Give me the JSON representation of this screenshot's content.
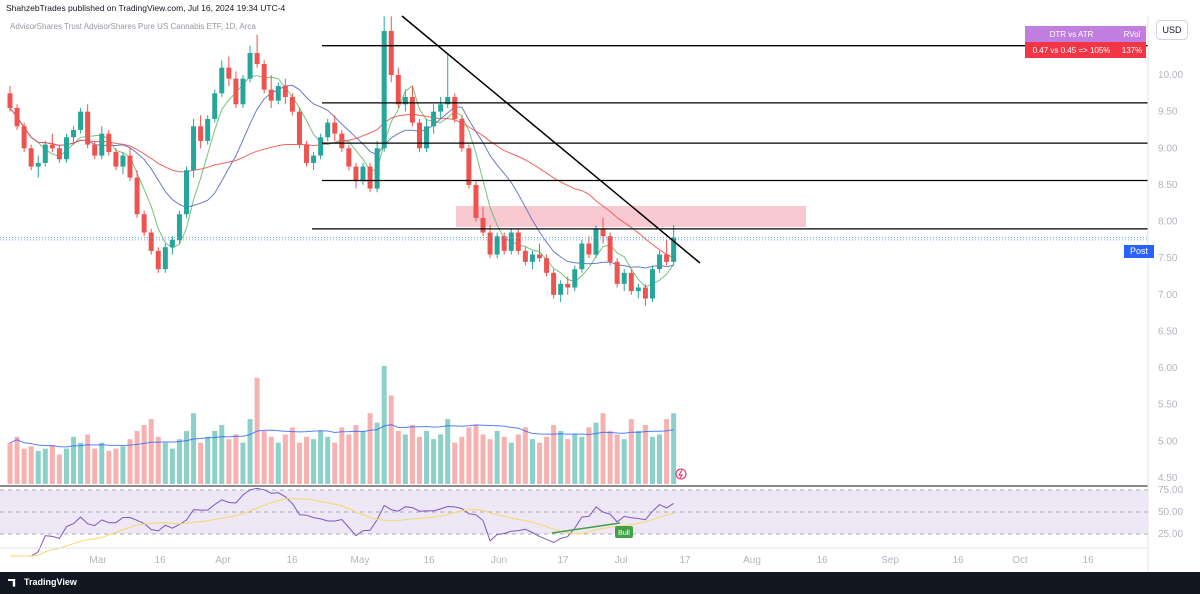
{
  "header": {
    "publisher_line": "ShahzebTrades published on TradingView.com, Jul 16, 2024 19:34 UTC-4",
    "symbol_line": "AdvisorShares Trust AdvisorShares Pure US Cannabis ETF, 1D, Arca"
  },
  "currency_button": "USD",
  "dtr_table": {
    "header_left": "DTR vs ATR",
    "header_right": "RVol",
    "value_left": "0.47 vs 0.45 => 105%",
    "value_right": "137%"
  },
  "post_label": "Post",
  "footer": {
    "logo_text": "TradingView"
  },
  "colors": {
    "bull": "#26a69a",
    "bear": "#ef5350",
    "ma_fast": "#66bb6a",
    "ma_mid": "#5c6bc0",
    "ma_slow": "#ef5350",
    "zone": "#f8bbc6",
    "rsi_line": "#7e57c2",
    "rsi_ma": "#f7d96a",
    "rsi_band": "#ede7f6",
    "table_purple": "#c07ee0",
    "table_red": "#f23645"
  },
  "chart_data": {
    "type": "candlestick",
    "price_axis": {
      "ticks": [
        "10.00",
        "9.50",
        "9.00",
        "8.50",
        "8.00",
        "7.50",
        "7.00",
        "6.50",
        "6.00",
        "5.50",
        "5.00",
        "4.50"
      ],
      "ylim": [
        4.5,
        10.5
      ]
    },
    "levels": [
      {
        "label": "10.40",
        "value": 10.4
      },
      {
        "label": "9.62",
        "value": 9.62
      },
      {
        "label": "9.07",
        "value": 9.07
      },
      {
        "label": "8.56",
        "value": 8.56
      },
      {
        "label": "7.90",
        "value": 7.9
      }
    ],
    "last_price": {
      "label": "7.78",
      "value": 7.78
    },
    "post_price": {
      "label": "7.75",
      "value": 7.75
    },
    "time_axis": [
      "Mar",
      "16",
      "Apr",
      "16",
      "May",
      "16",
      "Jun",
      "17",
      "Jul",
      "17",
      "Aug",
      "16",
      "Sep",
      "16",
      "Oct",
      "16"
    ],
    "rsi_axis": [
      "75.00",
      "50.00",
      "25.00"
    ],
    "rsi_badge": "Bull",
    "candles_ohlc": [
      [
        9.75,
        9.85,
        9.5,
        9.55
      ],
      [
        9.55,
        9.6,
        9.25,
        9.3
      ],
      [
        9.3,
        9.35,
        8.95,
        9.0
      ],
      [
        9.0,
        9.05,
        8.7,
        8.75
      ],
      [
        8.75,
        8.9,
        8.6,
        8.8
      ],
      [
        8.8,
        9.1,
        8.75,
        9.05
      ],
      [
        9.05,
        9.2,
        8.95,
        9.0
      ],
      [
        9.0,
        9.05,
        8.8,
        8.85
      ],
      [
        8.85,
        9.2,
        8.8,
        9.15
      ],
      [
        9.15,
        9.3,
        9.05,
        9.25
      ],
      [
        9.25,
        9.55,
        9.2,
        9.5
      ],
      [
        9.5,
        9.6,
        9.0,
        9.05
      ],
      [
        9.05,
        9.1,
        8.85,
        8.9
      ],
      [
        8.9,
        9.3,
        8.85,
        9.2
      ],
      [
        9.2,
        9.25,
        8.9,
        8.95
      ],
      [
        8.95,
        9.0,
        8.7,
        8.75
      ],
      [
        8.75,
        8.95,
        8.65,
        8.9
      ],
      [
        8.9,
        9.0,
        8.55,
        8.6
      ],
      [
        8.6,
        8.7,
        8.05,
        8.1
      ],
      [
        8.1,
        8.15,
        7.8,
        7.85
      ],
      [
        7.85,
        7.9,
        7.55,
        7.6
      ],
      [
        7.6,
        7.65,
        7.3,
        7.35
      ],
      [
        7.35,
        7.7,
        7.3,
        7.65
      ],
      [
        7.65,
        7.8,
        7.55,
        7.75
      ],
      [
        7.75,
        8.15,
        7.7,
        8.1
      ],
      [
        8.1,
        8.75,
        8.05,
        8.7
      ],
      [
        8.7,
        9.4,
        8.6,
        9.3
      ],
      [
        9.3,
        9.45,
        9.0,
        9.1
      ],
      [
        9.1,
        9.45,
        9.05,
        9.4
      ],
      [
        9.4,
        9.8,
        9.35,
        9.75
      ],
      [
        9.75,
        10.2,
        9.7,
        10.1
      ],
      [
        10.1,
        10.25,
        9.85,
        9.95
      ],
      [
        9.95,
        10.05,
        9.55,
        9.6
      ],
      [
        9.6,
        10.0,
        9.55,
        9.95
      ],
      [
        9.95,
        10.4,
        9.9,
        10.3
      ],
      [
        10.3,
        10.55,
        10.1,
        10.15
      ],
      [
        10.15,
        10.2,
        9.75,
        9.8
      ],
      [
        9.8,
        10.0,
        9.55,
        9.65
      ],
      [
        9.65,
        9.9,
        9.6,
        9.85
      ],
      [
        9.85,
        9.95,
        9.6,
        9.7
      ],
      [
        9.7,
        9.75,
        9.45,
        9.5
      ],
      [
        9.5,
        9.55,
        9.0,
        9.05
      ],
      [
        9.05,
        9.1,
        8.75,
        8.8
      ],
      [
        8.8,
        8.95,
        8.7,
        8.9
      ],
      [
        8.9,
        9.2,
        8.85,
        9.15
      ],
      [
        9.15,
        9.4,
        9.1,
        9.35
      ],
      [
        9.35,
        9.45,
        9.1,
        9.2
      ],
      [
        9.2,
        9.25,
        8.95,
        9.0
      ],
      [
        9.0,
        9.05,
        8.7,
        8.75
      ],
      [
        8.75,
        8.8,
        8.45,
        8.55
      ],
      [
        8.55,
        8.8,
        8.5,
        8.75
      ],
      [
        8.75,
        8.8,
        8.4,
        8.45
      ],
      [
        8.45,
        9.1,
        8.4,
        9.0
      ],
      [
        9.0,
        10.8,
        8.95,
        10.6
      ],
      [
        10.6,
        10.8,
        9.9,
        10.0
      ],
      [
        10.0,
        10.1,
        9.55,
        9.6
      ],
      [
        9.6,
        9.8,
        9.5,
        9.7
      ],
      [
        9.7,
        9.85,
        9.3,
        9.35
      ],
      [
        9.35,
        9.4,
        8.95,
        9.0
      ],
      [
        9.0,
        9.4,
        8.95,
        9.3
      ],
      [
        9.3,
        9.6,
        9.2,
        9.5
      ],
      [
        9.5,
        9.7,
        9.4,
        9.6
      ],
      [
        9.6,
        10.3,
        9.55,
        9.7
      ],
      [
        9.7,
        9.75,
        9.35,
        9.4
      ],
      [
        9.4,
        9.45,
        8.95,
        9.0
      ],
      [
        9.0,
        9.05,
        8.45,
        8.5
      ],
      [
        8.5,
        8.55,
        8.0,
        8.05
      ],
      [
        8.05,
        8.2,
        7.8,
        7.85
      ],
      [
        7.85,
        7.95,
        7.5,
        7.55
      ],
      [
        7.55,
        7.85,
        7.5,
        7.8
      ],
      [
        7.8,
        7.85,
        7.55,
        7.6
      ],
      [
        7.6,
        7.9,
        7.55,
        7.85
      ],
      [
        7.85,
        7.9,
        7.55,
        7.6
      ],
      [
        7.6,
        7.65,
        7.4,
        7.45
      ],
      [
        7.45,
        7.6,
        7.35,
        7.55
      ],
      [
        7.55,
        7.7,
        7.45,
        7.5
      ],
      [
        7.5,
        7.55,
        7.25,
        7.3
      ],
      [
        7.3,
        7.35,
        6.95,
        7.0
      ],
      [
        7.0,
        7.2,
        6.9,
        7.15
      ],
      [
        7.15,
        7.25,
        7.0,
        7.1
      ],
      [
        7.1,
        7.4,
        7.05,
        7.35
      ],
      [
        7.35,
        7.75,
        7.3,
        7.7
      ],
      [
        7.7,
        7.8,
        7.5,
        7.55
      ],
      [
        7.55,
        7.95,
        7.5,
        7.9
      ],
      [
        7.9,
        8.05,
        7.7,
        7.8
      ],
      [
        7.8,
        7.85,
        7.4,
        7.45
      ],
      [
        7.45,
        7.5,
        7.1,
        7.15
      ],
      [
        7.15,
        7.35,
        7.05,
        7.3
      ],
      [
        7.3,
        7.35,
        7.0,
        7.05
      ],
      [
        7.05,
        7.15,
        6.95,
        7.1
      ],
      [
        7.1,
        7.15,
        6.85,
        6.95
      ],
      [
        6.95,
        7.4,
        6.9,
        7.35
      ],
      [
        7.35,
        7.6,
        7.3,
        7.55
      ],
      [
        7.55,
        7.75,
        7.4,
        7.45
      ],
      [
        7.45,
        7.95,
        7.4,
        7.78
      ]
    ],
    "volume_rel": [
      0.35,
      0.4,
      0.3,
      0.32,
      0.28,
      0.3,
      0.33,
      0.25,
      0.3,
      0.4,
      0.35,
      0.42,
      0.3,
      0.35,
      0.28,
      0.3,
      0.32,
      0.38,
      0.45,
      0.5,
      0.55,
      0.4,
      0.35,
      0.3,
      0.38,
      0.45,
      0.6,
      0.35,
      0.4,
      0.45,
      0.5,
      0.38,
      0.42,
      0.35,
      0.55,
      0.9,
      0.45,
      0.4,
      0.35,
      0.42,
      0.48,
      0.35,
      0.4,
      0.38,
      0.45,
      0.4,
      0.35,
      0.48,
      0.42,
      0.5,
      0.45,
      0.6,
      0.52,
      1.0,
      0.75,
      0.45,
      0.42,
      0.5,
      0.4,
      0.45,
      0.38,
      0.42,
      0.55,
      0.35,
      0.4,
      0.48,
      0.5,
      0.42,
      0.38,
      0.45,
      0.4,
      0.35,
      0.42,
      0.48,
      0.38,
      0.35,
      0.4,
      0.5,
      0.45,
      0.38,
      0.42,
      0.4,
      0.48,
      0.52,
      0.6,
      0.45,
      0.42,
      0.38,
      0.55,
      0.45,
      0.5,
      0.4,
      0.42,
      0.55,
      0.6
    ]
  }
}
